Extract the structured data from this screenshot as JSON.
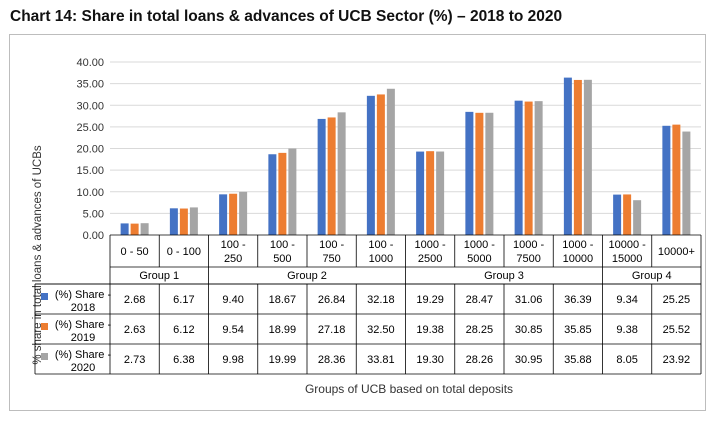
{
  "title": "Chart 14: Share in total loans & advances of UCB Sector (%) – 2018 to 2020",
  "chart_data": {
    "type": "bar",
    "ylabel": "% share in total loans & advances of UCBs",
    "xlabel": "Groups of UCB based on total deposits",
    "ylim": [
      0,
      40
    ],
    "yticks": [
      "0.00",
      "5.00",
      "10.00",
      "15.00",
      "20.00",
      "25.00",
      "30.00",
      "35.00",
      "40.00"
    ],
    "categories": [
      "0 - 50",
      "0 - 100",
      "100 -\n250",
      "100 -\n500",
      "100 -\n750",
      "100 -\n1000",
      "1000 -\n2500",
      "1000 -\n5000",
      "1000 -\n7500",
      "1000 -\n10000",
      "10000 -\n15000",
      "10000+"
    ],
    "groups": [
      {
        "label": "Group 1",
        "count": 2
      },
      {
        "label": "Group 2",
        "count": 4
      },
      {
        "label": "Group 3",
        "count": 4
      },
      {
        "label": "Group 4",
        "count": 2
      }
    ],
    "series": [
      {
        "name": "(%) Share -\n2018",
        "color": "#4472c4",
        "values": [
          2.68,
          6.17,
          9.4,
          18.67,
          26.84,
          32.18,
          19.29,
          28.47,
          31.06,
          36.39,
          9.34,
          25.25
        ],
        "labels": [
          "2.68",
          "6.17",
          "9.40",
          "18.67",
          "26.84",
          "32.18",
          "19.29",
          "28.47",
          "31.06",
          "36.39",
          "9.34",
          "25.25"
        ]
      },
      {
        "name": "(%) Share -\n2019",
        "color": "#ed7d31",
        "values": [
          2.63,
          6.12,
          9.54,
          18.99,
          27.18,
          32.5,
          19.38,
          28.25,
          30.85,
          35.85,
          9.38,
          25.52
        ],
        "labels": [
          "2.63",
          "6.12",
          "9.54",
          "18.99",
          "27.18",
          "32.50",
          "19.38",
          "28.25",
          "30.85",
          "35.85",
          "9.38",
          "25.52"
        ]
      },
      {
        "name": "(%) Share -\n2020",
        "color": "#a5a5a5",
        "values": [
          2.73,
          6.38,
          9.98,
          19.99,
          28.36,
          33.81,
          19.3,
          28.26,
          30.95,
          35.88,
          8.05,
          23.92
        ],
        "labels": [
          "2.73",
          "6.38",
          "9.98",
          "19.99",
          "28.36",
          "33.81",
          "19.30",
          "28.26",
          "30.95",
          "35.88",
          "8.05",
          "23.92"
        ]
      }
    ]
  }
}
